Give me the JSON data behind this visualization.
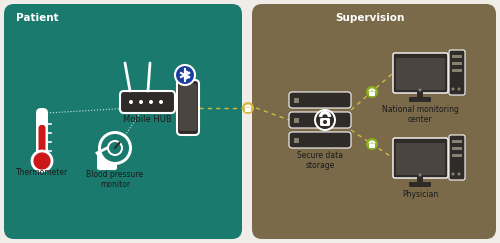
{
  "bg_color": "#f0ede8",
  "patient_bg": "#1a7a6e",
  "supervision_bg": "#7a6a4a",
  "patient_label": "Patient",
  "supervision_label": "Supervision",
  "mobile_hub_label": "Mobile HUB",
  "thermometer_label": "Thermometer",
  "bp_label": "Blood pressure\nmonitor",
  "storage_label": "Secure data\nstorage",
  "nmc_label": "National monitoring\ncenter",
  "physician_label": "Physician",
  "dark_icon": "#2e2b28",
  "darker_icon": "#222020",
  "white": "#ffffff",
  "yellow": "#d4b840",
  "green_lock": "#8ab020",
  "red_thermo": "#cc1818",
  "bluetooth_blue": "#1a3ea0",
  "text_color": "#ffffff",
  "label_color": "#1a1a1a",
  "screen_color": "#4a4540",
  "server_dot": "#888070",
  "monitor_lines": "#888070"
}
